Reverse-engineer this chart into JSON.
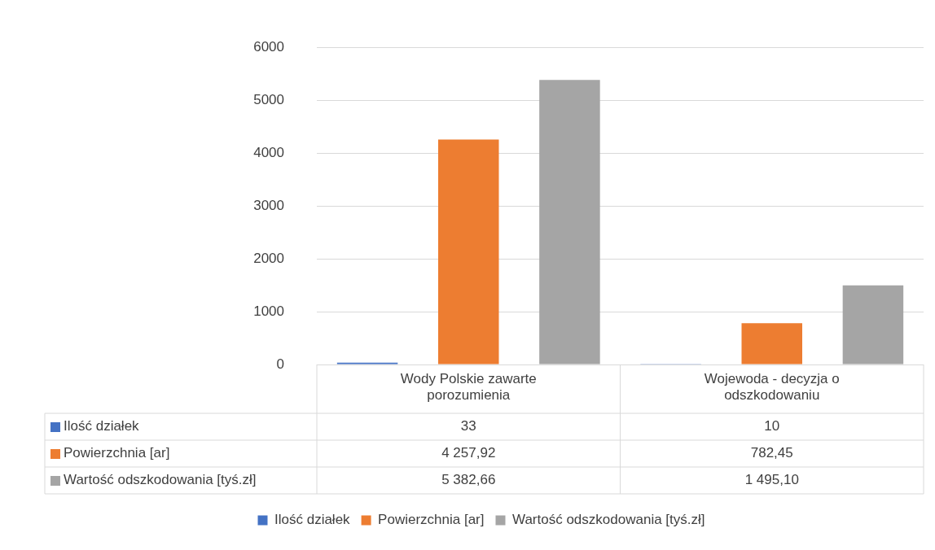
{
  "chart_data": {
    "type": "bar",
    "categories": [
      "Wody Polskie zawarte porozumienia",
      "Wojewoda - decyzja o odszkodowaniu"
    ],
    "series": [
      {
        "name": "Ilość działek",
        "color": "#4472c4",
        "values": [
          33,
          10
        ],
        "value_labels": [
          "33",
          "10"
        ]
      },
      {
        "name": "Powierzchnia [ar]",
        "color": "#ed7d31",
        "values": [
          4257.92,
          782.45
        ],
        "value_labels": [
          "4 257,92",
          "782,45"
        ]
      },
      {
        "name": "Wartość odszkodowania [tyś.zł]",
        "color": "#a5a5a5",
        "values": [
          5382.66,
          1495.1
        ],
        "value_labels": [
          "5 382,66",
          "1 495,10"
        ]
      }
    ],
    "ylim": [
      0,
      6000
    ],
    "yticks": [
      0,
      1000,
      2000,
      3000,
      4000,
      5000,
      6000
    ],
    "grid": "y",
    "legend": "bottom"
  }
}
